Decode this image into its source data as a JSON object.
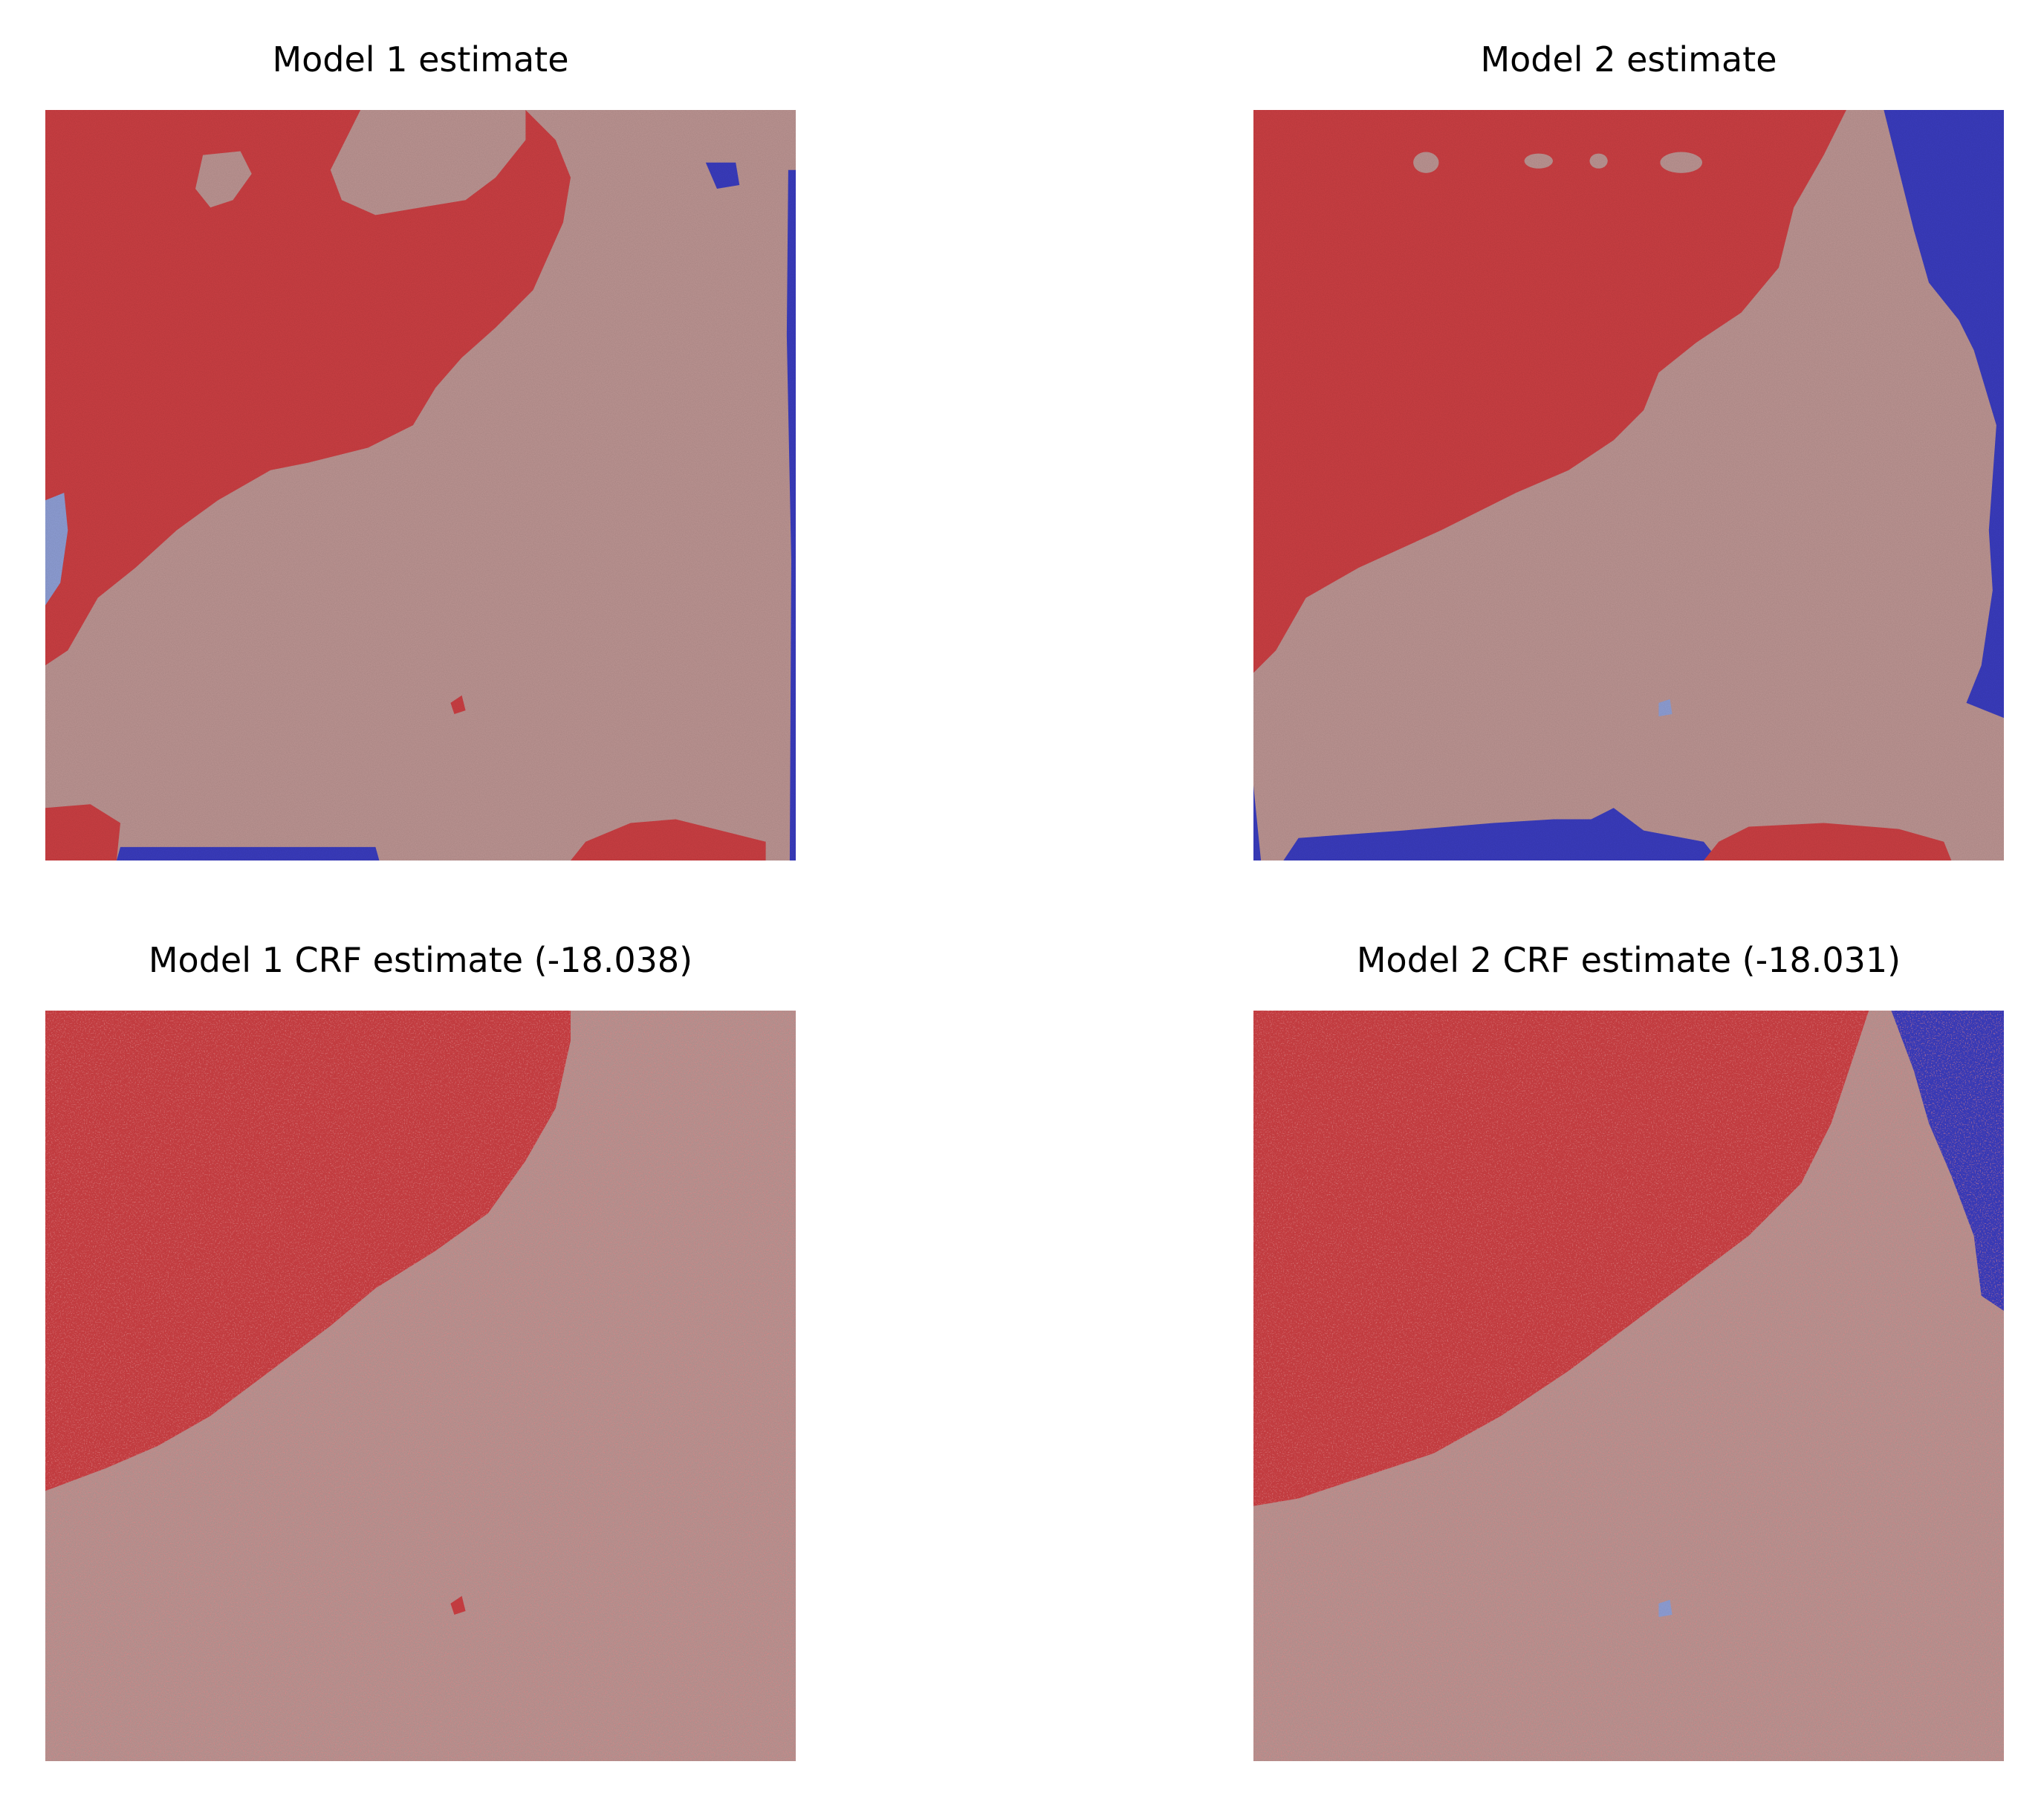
{
  "figure": {
    "panels": [
      {
        "title": "Model 1 estimate"
      },
      {
        "title": "Model 2 estimate"
      },
      {
        "title": "Model 1 CRF estimate (-18.038)"
      },
      {
        "title": "Model 2 CRF estimate (-18.031)"
      }
    ]
  },
  "colors": {
    "class_red": "#cc3a3f",
    "class_background": "#bd9593",
    "class_blue": "#3a3cbf",
    "class_light_blue": "#8f9fd6"
  }
}
